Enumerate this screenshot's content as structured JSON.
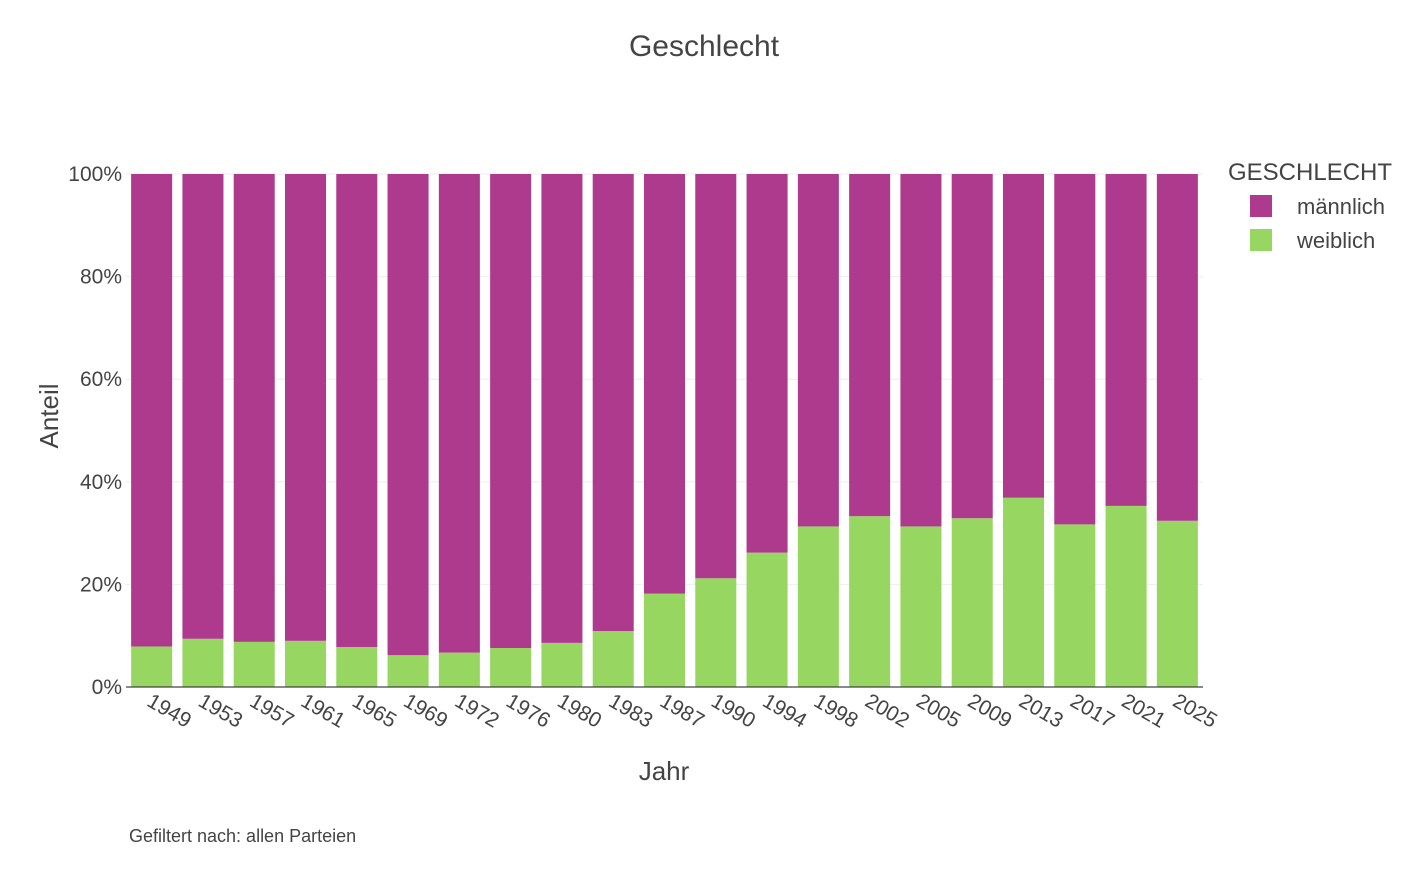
{
  "chart_data": {
    "type": "bar",
    "stacked": true,
    "title": "Geschlecht",
    "xlabel": "Jahr",
    "ylabel": "Anteil",
    "ylim": [
      0,
      100
    ],
    "y_ticks": [
      "0%",
      "20%",
      "40%",
      "60%",
      "80%",
      "100%"
    ],
    "y_tick_values": [
      0,
      20,
      40,
      60,
      80,
      100
    ],
    "grid": true,
    "legend_position": "top-right",
    "legend_title": "GESCHLECHT",
    "categories": [
      "1949",
      "1953",
      "1957",
      "1961",
      "1965",
      "1969",
      "1972",
      "1976",
      "1980",
      "1983",
      "1987",
      "1990",
      "1994",
      "1998",
      "2002",
      "2005",
      "2009",
      "2013",
      "2017",
      "2021",
      "2025"
    ],
    "series": [
      {
        "name": "männlich",
        "color": "#ae3a8e",
        "values": [
          92.1,
          90.6,
          91.2,
          91.0,
          92.2,
          93.8,
          93.3,
          92.4,
          91.4,
          89.1,
          81.8,
          78.8,
          73.8,
          68.7,
          66.7,
          68.7,
          67.1,
          63.1,
          68.3,
          64.7,
          67.6
        ]
      },
      {
        "name": "weiblich",
        "color": "#97d661",
        "values": [
          7.9,
          9.4,
          8.8,
          9.0,
          7.8,
          6.2,
          6.7,
          7.6,
          8.6,
          10.9,
          18.2,
          21.2,
          26.2,
          31.3,
          33.3,
          31.3,
          32.9,
          36.9,
          31.7,
          35.3,
          32.4
        ]
      }
    ],
    "footnote": "Gefiltert nach: allen Parteien"
  }
}
